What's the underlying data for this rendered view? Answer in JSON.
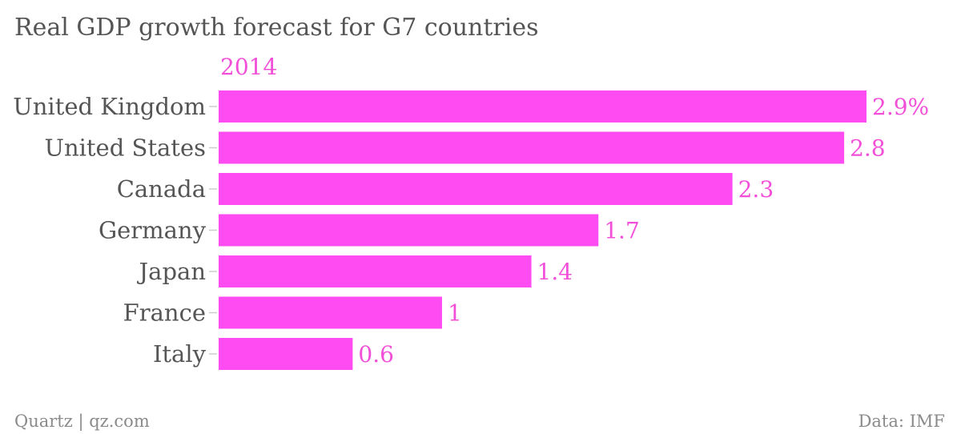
{
  "chart_data": {
    "type": "bar",
    "orientation": "horizontal",
    "title": "Real GDP growth forecast for G7 countries",
    "categories": [
      "United Kingdom",
      "United States",
      "Canada",
      "Germany",
      "Japan",
      "France",
      "Italy"
    ],
    "series": [
      {
        "name": "2014",
        "values": [
          2.9,
          2.8,
          2.3,
          1.7,
          1.4,
          1,
          0.6
        ],
        "value_labels": [
          "2.9%",
          "2.8",
          "2.3",
          "1.7",
          "1.4",
          "1",
          "0.6"
        ],
        "color": "#ff4cf2"
      }
    ],
    "xlim": [
      0,
      2.9
    ],
    "grid": false,
    "legend": "top-left"
  },
  "footer": {
    "source_left": "Quartz | qz.com",
    "source_right": "Data: IMF"
  },
  "colors": {
    "series": "#ff4cf2",
    "series_text": "#f24fd9",
    "text": "#555555",
    "muted": "#8a8a8a"
  }
}
